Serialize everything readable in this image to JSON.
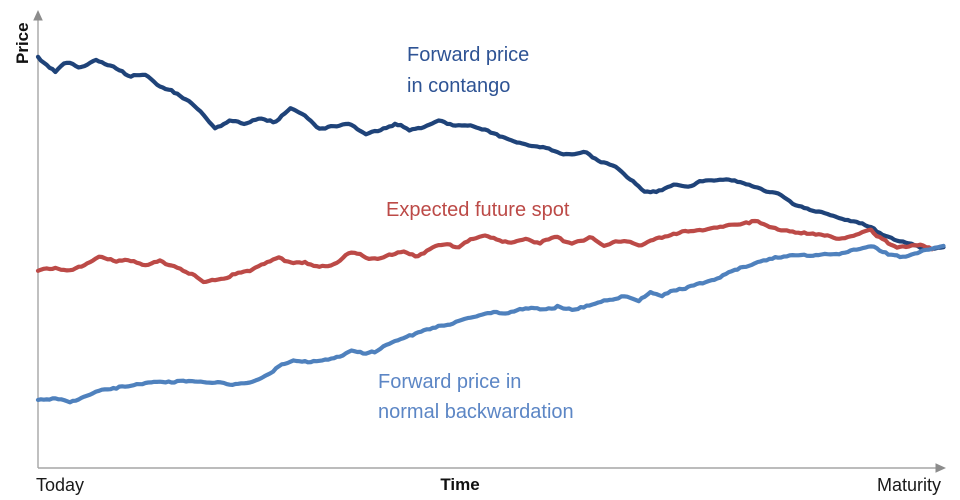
{
  "chart_data": {
    "type": "line",
    "title": "",
    "ylabel": "Price",
    "xlabel": "Time",
    "x_start_label": "Today",
    "x_end_label": "Maturity",
    "axis_color": "#a6a6a6",
    "arrow_color": "#8c8c8c",
    "x_range_pct": [
      0,
      100
    ],
    "y_range": [
      0,
      100
    ],
    "grid": false,
    "legend_position": "inline-annotations",
    "series": [
      {
        "name": "Forward price in contango",
        "color": "#1f4379",
        "label_color": "#2e5394",
        "label_lines": [
          "Forward price",
          "in contango"
        ],
        "points": [
          [
            0,
            93.6
          ],
          [
            1.9,
            90.4
          ],
          [
            3.0,
            92.5
          ],
          [
            4.6,
            90.9
          ],
          [
            6.3,
            92.7
          ],
          [
            8.5,
            90.9
          ],
          [
            10.1,
            89.0
          ],
          [
            11.8,
            89.7
          ],
          [
            13.4,
            87.4
          ],
          [
            15.1,
            85.8
          ],
          [
            16.8,
            84.0
          ],
          [
            19.5,
            77.9
          ],
          [
            21.2,
            79.5
          ],
          [
            22.8,
            78.3
          ],
          [
            24.5,
            79.9
          ],
          [
            26.1,
            79.0
          ],
          [
            27.8,
            82.2
          ],
          [
            29.4,
            80.6
          ],
          [
            31.1,
            77.6
          ],
          [
            32.7,
            78.3
          ],
          [
            34.4,
            78.8
          ],
          [
            36.1,
            76.5
          ],
          [
            37.7,
            77.6
          ],
          [
            39.4,
            79.0
          ],
          [
            41.0,
            77.6
          ],
          [
            42.7,
            78.3
          ],
          [
            44.3,
            79.5
          ],
          [
            46.0,
            78.3
          ],
          [
            47.6,
            78.5
          ],
          [
            49.3,
            77.6
          ],
          [
            50.9,
            75.8
          ],
          [
            52.6,
            74.9
          ],
          [
            54.2,
            74.0
          ],
          [
            55.9,
            73.3
          ],
          [
            57.6,
            72.1
          ],
          [
            59.2,
            72.1
          ],
          [
            60.3,
            72.6
          ],
          [
            62.0,
            70.1
          ],
          [
            63.6,
            69.2
          ],
          [
            65.3,
            66.4
          ],
          [
            66.9,
            63.5
          ],
          [
            68.6,
            63.5
          ],
          [
            70.2,
            64.6
          ],
          [
            71.9,
            64.2
          ],
          [
            73.5,
            65.5
          ],
          [
            75.2,
            65.3
          ],
          [
            76.9,
            65.3
          ],
          [
            78.5,
            64.6
          ],
          [
            80.2,
            63.0
          ],
          [
            81.8,
            62.1
          ],
          [
            83.5,
            60.0
          ],
          [
            85.1,
            59.1
          ],
          [
            86.8,
            58.4
          ],
          [
            88.4,
            57.5
          ],
          [
            90.1,
            56.6
          ],
          [
            91.7,
            55.0
          ],
          [
            93.4,
            52.7
          ],
          [
            95.0,
            51.4
          ],
          [
            96.7,
            50.5
          ],
          [
            98.3,
            49.8
          ],
          [
            100,
            50.5
          ]
        ]
      },
      {
        "name": "Expected future spot",
        "color": "#bc4a47",
        "label_color": "#bc4a47",
        "label_lines": [
          "Expected future spot"
        ],
        "points": [
          [
            0,
            45.0
          ],
          [
            1.9,
            45.2
          ],
          [
            3.5,
            44.5
          ],
          [
            5.2,
            45.9
          ],
          [
            6.8,
            47.7
          ],
          [
            8.5,
            46.8
          ],
          [
            10.1,
            47.0
          ],
          [
            11.8,
            46.1
          ],
          [
            13.4,
            46.8
          ],
          [
            15.1,
            45.7
          ],
          [
            16.8,
            44.1
          ],
          [
            18.4,
            42.5
          ],
          [
            20.1,
            42.9
          ],
          [
            21.7,
            44.3
          ],
          [
            23.4,
            45.0
          ],
          [
            25.0,
            47.0
          ],
          [
            26.5,
            48.2
          ],
          [
            27.8,
            47.3
          ],
          [
            29.4,
            47.3
          ],
          [
            31.1,
            46.3
          ],
          [
            32.7,
            47.0
          ],
          [
            34.4,
            49.3
          ],
          [
            36.1,
            48.2
          ],
          [
            37.5,
            47.5
          ],
          [
            39.0,
            48.9
          ],
          [
            40.5,
            49.8
          ],
          [
            41.9,
            48.6
          ],
          [
            43.4,
            50.7
          ],
          [
            44.9,
            51.4
          ],
          [
            46.3,
            50.7
          ],
          [
            47.6,
            52.3
          ],
          [
            49.3,
            53.0
          ],
          [
            50.9,
            52.3
          ],
          [
            52.3,
            51.8
          ],
          [
            53.7,
            52.5
          ],
          [
            55.3,
            51.8
          ],
          [
            57.2,
            53.2
          ],
          [
            58.7,
            51.4
          ],
          [
            60.0,
            52.3
          ],
          [
            61.1,
            53.0
          ],
          [
            62.2,
            51.1
          ],
          [
            63.6,
            52.1
          ],
          [
            65.1,
            52.1
          ],
          [
            66.4,
            50.9
          ],
          [
            68.0,
            51.8
          ],
          [
            69.5,
            52.7
          ],
          [
            70.8,
            53.4
          ],
          [
            72.4,
            53.9
          ],
          [
            74.1,
            54.6
          ],
          [
            75.7,
            55.3
          ],
          [
            77.4,
            55.7
          ],
          [
            79.1,
            56.4
          ],
          [
            80.2,
            55.3
          ],
          [
            81.8,
            54.3
          ],
          [
            83.5,
            54.1
          ],
          [
            85.1,
            54.1
          ],
          [
            86.8,
            53.4
          ],
          [
            88.4,
            52.5
          ],
          [
            90.1,
            53.4
          ],
          [
            91.7,
            54.3
          ],
          [
            93.1,
            52.1
          ],
          [
            94.5,
            50.2
          ],
          [
            96.1,
            50.5
          ],
          [
            97.2,
            50.9
          ],
          [
            98.6,
            50.2
          ]
        ]
      },
      {
        "name": "Forward price in normal backwardation",
        "color": "#4f81bd",
        "label_color": "#5c86c5",
        "label_lines": [
          "Forward price in",
          "normal backwardation"
        ],
        "points": [
          [
            0,
            15.5
          ],
          [
            1.9,
            15.8
          ],
          [
            3.5,
            14.8
          ],
          [
            5.2,
            16.0
          ],
          [
            6.8,
            17.6
          ],
          [
            8.5,
            17.8
          ],
          [
            10.1,
            18.3
          ],
          [
            11.8,
            18.9
          ],
          [
            13.2,
            19.2
          ],
          [
            14.8,
            19.2
          ],
          [
            16.2,
            19.6
          ],
          [
            17.9,
            19.6
          ],
          [
            19.5,
            19.9
          ],
          [
            20.9,
            19.4
          ],
          [
            22.5,
            19.6
          ],
          [
            23.9,
            20.3
          ],
          [
            25.4,
            21.7
          ],
          [
            26.7,
            24.0
          ],
          [
            28.3,
            25.1
          ],
          [
            30.0,
            24.7
          ],
          [
            31.6,
            24.9
          ],
          [
            33.3,
            25.8
          ],
          [
            34.6,
            27.2
          ],
          [
            35.7,
            26.5
          ],
          [
            37.2,
            26.9
          ],
          [
            38.6,
            28.3
          ],
          [
            39.9,
            29.2
          ],
          [
            41.2,
            30.1
          ],
          [
            42.7,
            31.3
          ],
          [
            44.1,
            32.4
          ],
          [
            45.4,
            33.1
          ],
          [
            47.1,
            34.0
          ],
          [
            48.5,
            34.7
          ],
          [
            50.1,
            35.2
          ],
          [
            51.5,
            34.9
          ],
          [
            52.9,
            35.6
          ],
          [
            54.5,
            36.1
          ],
          [
            55.9,
            35.6
          ],
          [
            57.3,
            36.5
          ],
          [
            58.9,
            35.6
          ],
          [
            60.3,
            36.5
          ],
          [
            61.7,
            37.2
          ],
          [
            63.3,
            38.4
          ],
          [
            64.7,
            38.8
          ],
          [
            66.2,
            38.1
          ],
          [
            67.5,
            40.0
          ],
          [
            68.8,
            39.0
          ],
          [
            70.2,
            40.2
          ],
          [
            71.7,
            40.9
          ],
          [
            73.0,
            41.8
          ],
          [
            74.3,
            42.9
          ],
          [
            75.7,
            44.3
          ],
          [
            77.2,
            45.4
          ],
          [
            78.5,
            46.3
          ],
          [
            79.8,
            47.0
          ],
          [
            81.3,
            47.7
          ],
          [
            82.7,
            47.9
          ],
          [
            84.0,
            48.4
          ],
          [
            85.3,
            47.9
          ],
          [
            86.8,
            48.6
          ],
          [
            88.2,
            48.6
          ],
          [
            89.5,
            49.3
          ],
          [
            90.8,
            50.0
          ],
          [
            91.9,
            50.7
          ],
          [
            93.1,
            49.3
          ],
          [
            94.2,
            48.6
          ],
          [
            95.3,
            48.2
          ],
          [
            96.4,
            49.1
          ],
          [
            97.8,
            50.0
          ],
          [
            99.2,
            50.7
          ],
          [
            100,
            50.9
          ]
        ]
      }
    ]
  }
}
